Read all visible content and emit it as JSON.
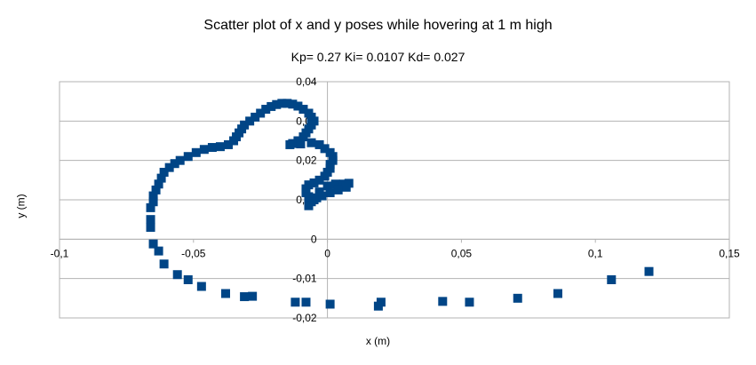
{
  "chart_data": {
    "type": "scatter",
    "title": "Scatter plot of x and y poses while hovering at 1 m high",
    "subtitle": "Kp= 0.27  Ki= 0.0107  Kd= 0.027",
    "xlabel": "x (m)",
    "ylabel": "y (m)",
    "xlim": [
      -0.1,
      0.15
    ],
    "ylim": [
      -0.02,
      0.04
    ],
    "x_ticks": [
      "-0,1",
      "-0,05",
      "0",
      "0,05",
      "0,1",
      "0,15"
    ],
    "y_ticks": [
      "-0,02",
      "-0,01",
      "0",
      "0,01",
      "0,02",
      "0,03",
      "0,04"
    ],
    "grid": true,
    "legend": "none",
    "marker_color": "#004586",
    "series": [
      {
        "x": [
          0.12,
          0.106,
          0.086,
          0.071,
          0.053,
          0.043,
          0.02,
          0.019,
          0.001,
          -0.008,
          -0.012,
          -0.028,
          -0.031,
          -0.038,
          -0.047,
          -0.052,
          -0.056,
          -0.061,
          -0.063,
          -0.065,
          -0.066,
          -0.066,
          -0.066,
          -0.065,
          -0.065,
          -0.064,
          -0.063,
          -0.062,
          -0.061,
          -0.059,
          -0.057,
          -0.055,
          -0.052,
          -0.049,
          -0.046,
          -0.043,
          -0.04,
          -0.037,
          -0.035,
          -0.034,
          -0.033,
          -0.032,
          -0.031,
          -0.029,
          -0.027,
          -0.025,
          -0.023,
          -0.021,
          -0.019,
          -0.017,
          -0.015,
          -0.013,
          -0.011,
          -0.009,
          -0.007,
          -0.006,
          -0.005,
          -0.006,
          -0.007,
          -0.008,
          -0.009,
          -0.011,
          -0.013,
          -0.014,
          -0.01,
          -0.006,
          -0.003,
          -0.001,
          0.001,
          0.002,
          0.002,
          0.001,
          0.001,
          0.0,
          -0.001,
          -0.003,
          -0.005,
          -0.007,
          -0.008,
          -0.008,
          -0.007,
          -0.005,
          -0.003,
          0.0,
          0.003,
          0.006,
          0.008,
          0.007,
          0.004,
          0.001,
          -0.002,
          -0.004,
          -0.005,
          -0.006,
          -0.007,
          -0.007
        ],
        "y": [
          -0.0082,
          -0.0103,
          -0.0138,
          -0.015,
          -0.016,
          -0.0158,
          -0.016,
          -0.017,
          -0.0165,
          -0.016,
          -0.016,
          -0.0145,
          -0.0146,
          -0.0138,
          -0.012,
          -0.0103,
          -0.009,
          -0.0063,
          -0.003,
          -0.0012,
          0.003,
          0.005,
          0.008,
          0.0095,
          0.011,
          0.0125,
          0.014,
          0.0155,
          0.017,
          0.0182,
          0.0192,
          0.02,
          0.021,
          0.022,
          0.0228,
          0.0233,
          0.0235,
          0.024,
          0.025,
          0.026,
          0.027,
          0.028,
          0.029,
          0.03,
          0.031,
          0.032,
          0.033,
          0.0337,
          0.0342,
          0.0345,
          0.0345,
          0.0343,
          0.0338,
          0.033,
          0.032,
          0.031,
          0.03,
          0.029,
          0.028,
          0.027,
          0.026,
          0.025,
          0.0243,
          0.024,
          0.0242,
          0.0245,
          0.024,
          0.023,
          0.022,
          0.021,
          0.02,
          0.019,
          0.018,
          0.017,
          0.016,
          0.015,
          0.0143,
          0.0138,
          0.0128,
          0.0118,
          0.0108,
          0.0102,
          0.012,
          0.0135,
          0.014,
          0.014,
          0.0142,
          0.0132,
          0.0125,
          0.0118,
          0.011,
          0.0105,
          0.01,
          0.0095,
          0.009,
          0.0085
        ]
      }
    ]
  }
}
